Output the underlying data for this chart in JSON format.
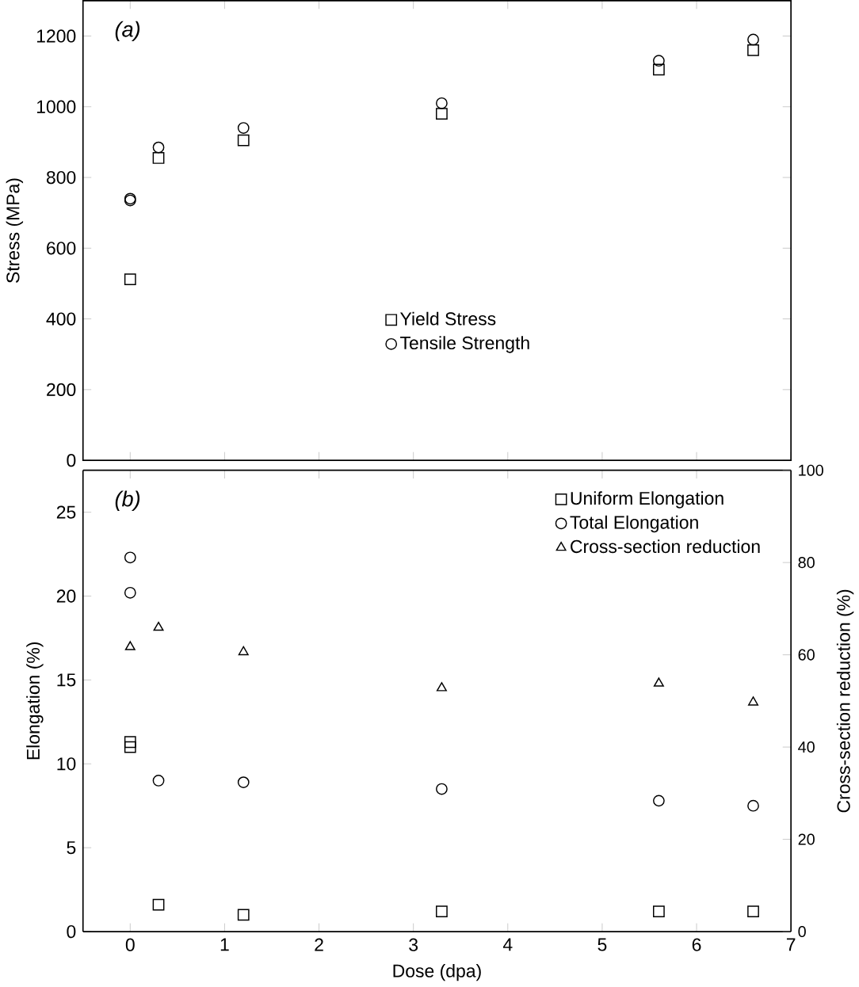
{
  "chart_data": [
    {
      "type": "scatter",
      "ylabel": "Stress (MPa)",
      "annotations": [
        "(a)"
      ],
      "xlim": [
        -0.5,
        7
      ],
      "xticks": [
        0,
        1,
        2,
        3,
        4,
        5,
        6,
        7
      ],
      "ylim": [
        0,
        1300
      ],
      "yticks": [
        0,
        200,
        400,
        600,
        800,
        1000,
        1200
      ],
      "tick_labels": "y",
      "legend": "bottom",
      "grid": false,
      "series": [
        {
          "name": "Yield Stress",
          "color": "#000000",
          "marker": "square",
          "x": [
            0,
            0.3,
            1.2,
            3.3,
            5.6,
            6.6
          ],
          "values": [
            512,
            855,
            905,
            980,
            1105,
            1160
          ]
        },
        {
          "name": "Tensile Strength",
          "color": "#000000",
          "marker": "circle",
          "x": [
            0,
            0,
            0.3,
            1.2,
            3.3,
            5.6,
            6.6
          ],
          "values": [
            735,
            740,
            885,
            940,
            1010,
            1130,
            1190
          ]
        }
      ]
    },
    {
      "type": "scatter",
      "xlabel": "Dose (dpa)",
      "ylabel": "Elongation (%)",
      "y2label": "Cross-section reduction (%)",
      "annotations": [
        "(b)"
      ],
      "xlim": [
        -0.5,
        7
      ],
      "xticks": [
        0,
        1,
        2,
        3,
        4,
        5,
        6,
        7
      ],
      "ylim": [
        0,
        27.5
      ],
      "yticks": [
        0,
        5,
        10,
        15,
        20,
        25
      ],
      "y2lim": [
        0,
        100
      ],
      "y2ticks": [
        0,
        20,
        40,
        60,
        80,
        100
      ],
      "legend": "top right",
      "grid": false,
      "series": [
        {
          "name": "Uniform Elongation",
          "color": "#000000",
          "marker": "square",
          "x": [
            0,
            0,
            0.3,
            1.2,
            3.3,
            5.6,
            6.6
          ],
          "values": [
            11.0,
            11.3,
            1.6,
            1.0,
            1.2,
            1.2,
            1.2
          ]
        },
        {
          "name": "Total Elongation",
          "color": "#000000",
          "marker": "circle",
          "x": [
            0,
            0,
            0.3,
            1.2,
            3.3,
            5.6,
            6.6
          ],
          "values": [
            22.3,
            20.2,
            9.0,
            8.9,
            8.5,
            7.8,
            7.5
          ]
        },
        {
          "name": "Cross-section reduction",
          "color": "#000000",
          "marker": "triangle",
          "axis": "y2",
          "x": [
            0,
            0.3,
            1.2,
            3.3,
            5.6,
            6.6
          ],
          "values": [
            61.7,
            65.9,
            60.6,
            52.8,
            53.8,
            49.7
          ]
        }
      ]
    }
  ]
}
